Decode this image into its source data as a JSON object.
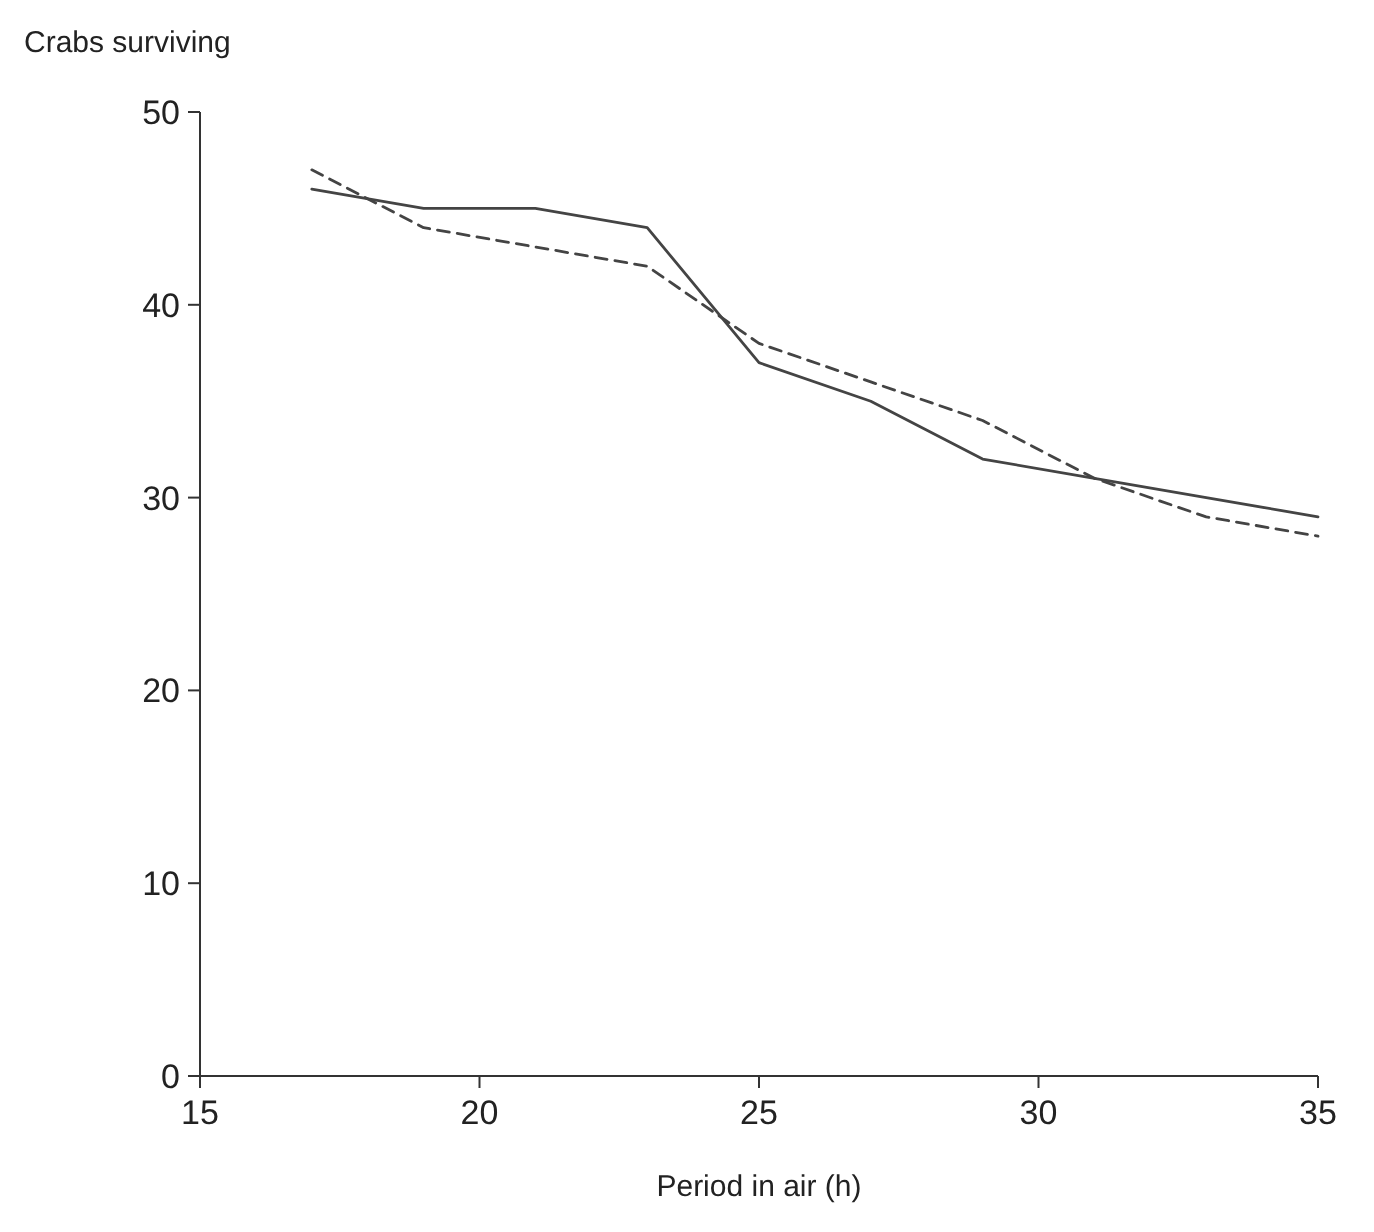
{
  "chart_data": {
    "type": "line",
    "ylabel": "Crabs surviving",
    "xlabel": "Period in air (h)",
    "x": [
      17,
      19,
      21,
      23,
      25,
      27,
      29,
      31,
      33,
      35
    ],
    "series": [
      {
        "color": "#444444",
        "line_style": "solid",
        "values": [
          46,
          45,
          45,
          44,
          37,
          35,
          32,
          31,
          30,
          29
        ]
      },
      {
        "color": "#444444",
        "line_style": "dashed",
        "values": [
          47,
          44,
          43,
          42,
          38,
          36,
          34,
          31,
          29,
          28
        ]
      }
    ],
    "xlim": [
      15,
      35
    ],
    "xticks": [
      15,
      20,
      25,
      30,
      35
    ],
    "ylim": [
      0,
      50
    ],
    "yticks": [
      0,
      10,
      20,
      30,
      40,
      50
    ],
    "grid": false,
    "marker": "none"
  }
}
